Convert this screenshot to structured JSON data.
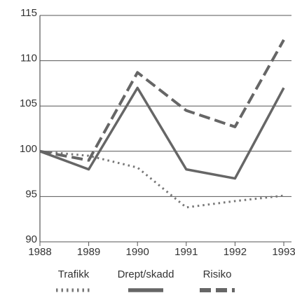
{
  "chart_data": {
    "type": "line",
    "x": [
      1988,
      1989,
      1990,
      1991,
      1992,
      1993
    ],
    "xlim": [
      1988,
      1993
    ],
    "xticks": [
      1988,
      1989,
      1990,
      1991,
      1992,
      1993
    ],
    "ylim": [
      90,
      115
    ],
    "yticks": [
      90,
      95,
      100,
      105,
      110,
      115
    ],
    "grid": true,
    "legend": "bottom",
    "series": [
      {
        "name": "Trafikk",
        "color": "#777777",
        "style": "dotted",
        "values": [
          100,
          99.5,
          98.2,
          93.8,
          94.5,
          95.1
        ]
      },
      {
        "name": "Drept/skadd",
        "color": "#666666",
        "style": "solid",
        "values": [
          100,
          98,
          107,
          98,
          97,
          107
        ]
      },
      {
        "name": "Risiko",
        "color": "#666666",
        "style": "dashed",
        "values": [
          100,
          99,
          108.7,
          104.5,
          102.7,
          112.3
        ]
      }
    ]
  }
}
